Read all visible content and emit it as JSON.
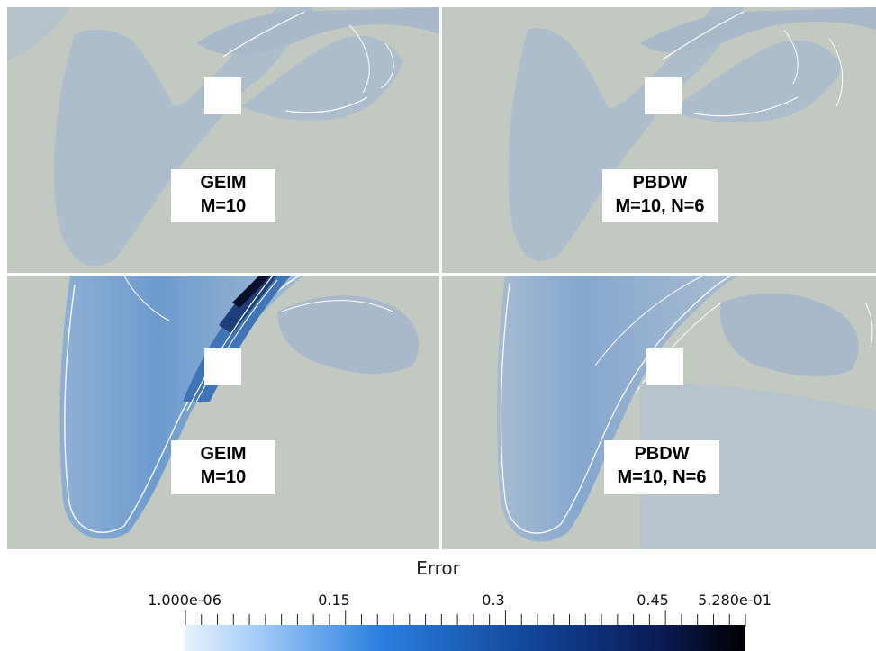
{
  "panels": [
    {
      "method": "GEIM",
      "params": "M=10"
    },
    {
      "method": "PBDW",
      "params": "M=10, N=6"
    },
    {
      "method": "GEIM",
      "params": "M=10"
    },
    {
      "method": "PBDW",
      "params": "M=10, N=6"
    }
  ],
  "colorbar": {
    "title": "Error",
    "tick_labels": [
      "1.000e-06",
      "0.15",
      "0.3",
      "0.45",
      "5.280e-01"
    ],
    "range": [
      1e-06,
      0.528
    ],
    "colors": {
      "low": "#e8f2fd",
      "mid": "#2a7fe0",
      "high": "#000000"
    }
  },
  "colors": {
    "background": "#c2c9c1",
    "field_light": "#aebdcc",
    "field_mid": "#9cb5cf",
    "field_strong": "#5b8fc9",
    "contour": "#ffffff"
  }
}
